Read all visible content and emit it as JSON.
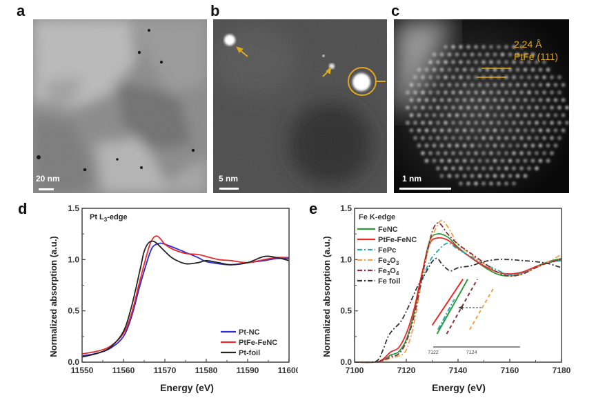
{
  "panels": {
    "a": {
      "label": "a",
      "scale_label": "20 nm"
    },
    "b": {
      "label": "b",
      "scale_label": "5 nm"
    },
    "c": {
      "label": "c",
      "scale_label": "1 nm",
      "annotation_spacing": "2.24 Å",
      "annotation_plane": "PtFe (111)"
    },
    "d": {
      "label": "d"
    },
    "e": {
      "label": "e"
    }
  },
  "colors": {
    "accent": "#e0a81c"
  },
  "chart_data": [
    {
      "type": "line",
      "title": "Pt L3-edge",
      "title_main": "Pt L",
      "title_sub": "3",
      "title_rest": "-edge",
      "xlabel": "Energy (eV)",
      "ylabel": "Normalized absorption (a.u.)",
      "xlim": [
        11550,
        11600
      ],
      "ylim": [
        0.0,
        1.5
      ],
      "xticks": [
        "11550",
        "11560",
        "11570",
        "11580",
        "11590",
        "11600"
      ],
      "yticks": [
        "0.0",
        "0.5",
        "1.0",
        "1.5"
      ],
      "legend_position": "bottom-right",
      "series": [
        {
          "name": "Pt-NC",
          "color": "#2b2bd6",
          "dash": "solid",
          "x": [
            11550,
            11554,
            11557,
            11560,
            11562,
            11564,
            11566,
            11567,
            11568,
            11569,
            11570,
            11572,
            11575,
            11578,
            11580,
            11583,
            11586,
            11590,
            11594,
            11597,
            11600
          ],
          "y": [
            0.06,
            0.09,
            0.14,
            0.25,
            0.45,
            0.75,
            1.02,
            1.12,
            1.15,
            1.16,
            1.15,
            1.12,
            1.07,
            1.02,
            0.98,
            0.96,
            0.95,
            0.97,
            0.99,
            1.01,
            1.01
          ]
        },
        {
          "name": "PtFe-FeNC",
          "color": "#e8282a",
          "dash": "solid",
          "x": [
            11550,
            11554,
            11557,
            11560,
            11562,
            11564,
            11566,
            11567,
            11568,
            11569,
            11570,
            11572,
            11575,
            11578,
            11580,
            11583,
            11586,
            11590,
            11594,
            11597,
            11600
          ],
          "y": [
            0.08,
            0.11,
            0.16,
            0.28,
            0.48,
            0.8,
            1.1,
            1.2,
            1.23,
            1.2,
            1.15,
            1.1,
            1.06,
            1.05,
            1.03,
            1.0,
            0.99,
            0.97,
            1.0,
            1.02,
            1.02
          ]
        },
        {
          "name": "Pt-foil",
          "color": "#222222",
          "dash": "solid",
          "x": [
            11550,
            11554,
            11557,
            11560,
            11562,
            11564,
            11565,
            11566,
            11567,
            11568,
            11570,
            11572,
            11575,
            11578,
            11580,
            11583,
            11586,
            11590,
            11594,
            11597,
            11600
          ],
          "y": [
            0.05,
            0.09,
            0.15,
            0.3,
            0.55,
            0.9,
            1.08,
            1.16,
            1.18,
            1.16,
            1.08,
            1.01,
            0.96,
            0.97,
            0.99,
            0.97,
            0.95,
            0.97,
            1.03,
            1.02,
            0.99
          ]
        }
      ]
    },
    {
      "type": "line",
      "title": "Fe K-edge",
      "xlabel": "Energy (eV)",
      "ylabel": "Normalized absorption (a.u.)",
      "xlim": [
        7100,
        7180
      ],
      "ylim": [
        0.0,
        1.5
      ],
      "xticks": [
        "7100",
        "7120",
        "7140",
        "7160",
        "7180"
      ],
      "yticks": [
        "0.0",
        "0.5",
        "1.0",
        "1.5"
      ],
      "legend_position": "top-left",
      "series": [
        {
          "name": "FeNC",
          "label_main": "FeNC",
          "color": "#2e9a3a",
          "dash": "solid",
          "x": [
            7100,
            7108,
            7111,
            7114,
            7117,
            7120,
            7123,
            7126,
            7129,
            7132,
            7136,
            7140,
            7145,
            7150,
            7155,
            7160,
            7165,
            7170,
            7175,
            7180
          ],
          "y": [
            0.0,
            0.0,
            0.02,
            0.07,
            0.1,
            0.22,
            0.48,
            0.85,
            1.18,
            1.25,
            1.22,
            1.12,
            1.02,
            0.93,
            0.86,
            0.84,
            0.87,
            0.93,
            0.98,
            1.01
          ]
        },
        {
          "name": "PtFe-FeNC",
          "label_main": "PtFe-FeNC",
          "color": "#e8282a",
          "dash": "solid",
          "x": [
            7100,
            7108,
            7111,
            7114,
            7117,
            7120,
            7123,
            7126,
            7129,
            7132,
            7136,
            7140,
            7145,
            7150,
            7155,
            7160,
            7165,
            7170,
            7175,
            7180
          ],
          "y": [
            0.0,
            0.0,
            0.03,
            0.1,
            0.14,
            0.28,
            0.52,
            0.86,
            1.15,
            1.21,
            1.19,
            1.11,
            1.02,
            0.94,
            0.88,
            0.86,
            0.88,
            0.93,
            0.97,
            1.0
          ]
        },
        {
          "name": "FePc",
          "label_main": "FePc",
          "color": "#2aa6b0",
          "dash": "dashdot",
          "x": [
            7100,
            7108,
            7111,
            7114,
            7117,
            7120,
            7123,
            7126,
            7129,
            7132,
            7136,
            7140,
            7145,
            7150,
            7155,
            7160,
            7165,
            7170,
            7175,
            7180
          ],
          "y": [
            0.0,
            0.0,
            0.02,
            0.06,
            0.08,
            0.2,
            0.45,
            0.78,
            0.98,
            1.08,
            1.16,
            1.1,
            1.03,
            0.96,
            0.9,
            0.85,
            0.87,
            0.92,
            0.97,
            0.99
          ]
        },
        {
          "name": "Fe2O3",
          "label_main": "Fe",
          "label_sub1": "2",
          "label_mid": "O",
          "label_sub2": "3",
          "color": "#f0a048",
          "dash": "dashdot",
          "x": [
            7100,
            7108,
            7111,
            7114,
            7117,
            7120,
            7123,
            7126,
            7129,
            7132,
            7134,
            7137,
            7140,
            7145,
            7150,
            7155,
            7160,
            7165,
            7170,
            7175,
            7180
          ],
          "y": [
            0.0,
            0.0,
            0.01,
            0.04,
            0.06,
            0.12,
            0.38,
            0.8,
            1.15,
            1.33,
            1.38,
            1.28,
            1.15,
            1.05,
            0.96,
            0.88,
            0.84,
            0.86,
            0.92,
            0.98,
            1.05
          ]
        },
        {
          "name": "Fe3O4",
          "label_main": "Fe",
          "label_sub1": "3",
          "label_mid": "O",
          "label_sub2": "4",
          "color": "#8e2e3a",
          "dash": "dashdot",
          "x": [
            7100,
            7108,
            7111,
            7114,
            7117,
            7120,
            7123,
            7126,
            7129,
            7131,
            7133,
            7136,
            7140,
            7145,
            7150,
            7155,
            7160,
            7165,
            7170,
            7175,
            7180
          ],
          "y": [
            0.0,
            0.0,
            0.02,
            0.05,
            0.08,
            0.2,
            0.45,
            0.82,
            1.18,
            1.33,
            1.35,
            1.25,
            1.15,
            1.06,
            0.97,
            0.88,
            0.84,
            0.86,
            0.92,
            0.97,
            1.0
          ]
        },
        {
          "name": "Fe foil",
          "label_main": "Fe foil",
          "color": "#333333",
          "dash": "dashdot",
          "x": [
            7100,
            7106,
            7109,
            7111,
            7113,
            7115,
            7118,
            7121,
            7124,
            7127,
            7130,
            7132,
            7134,
            7137,
            7140,
            7145,
            7150,
            7155,
            7160,
            7165,
            7170,
            7175,
            7180
          ],
          "y": [
            0.0,
            0.0,
            0.02,
            0.12,
            0.25,
            0.32,
            0.4,
            0.55,
            0.72,
            0.85,
            0.98,
            1.01,
            0.95,
            0.89,
            0.92,
            0.94,
            0.98,
            1.0,
            1.0,
            0.99,
            0.98,
            0.96,
            0.92
          ]
        }
      ],
      "inset": {
        "type": "line",
        "xticks": [
          "7122",
          "7124"
        ],
        "xlim": [
          7122,
          7125
        ],
        "arrow_direction": "left",
        "series": [
          {
            "name": "PtFe-FeNC",
            "color": "#e8282a",
            "dash": "solid",
            "x": [
              7121.95,
              7123.55
            ],
            "y": [
              0.25,
              0.78
            ]
          },
          {
            "name": "FeNC",
            "color": "#2e9a3a",
            "dash": "solid",
            "x": [
              7122.2,
              7123.8
            ],
            "y": [
              0.15,
              0.78
            ]
          },
          {
            "name": "FePc",
            "color": "#2aa6b0",
            "dash": "dashdot",
            "x": [
              7122.25,
              7123.1
            ],
            "y": [
              0.2,
              0.55
            ]
          },
          {
            "name": "Fe3O4",
            "color": "#8e2e3a",
            "dash": "dashed",
            "x": [
              7122.7,
              7124.3
            ],
            "y": [
              0.15,
              0.78
            ]
          },
          {
            "name": "Fe2O3",
            "color": "#f0a048",
            "dash": "dashed",
            "x": [
              7123.9,
              7125.15
            ],
            "y": [
              0.2,
              0.68
            ]
          }
        ]
      }
    }
  ]
}
